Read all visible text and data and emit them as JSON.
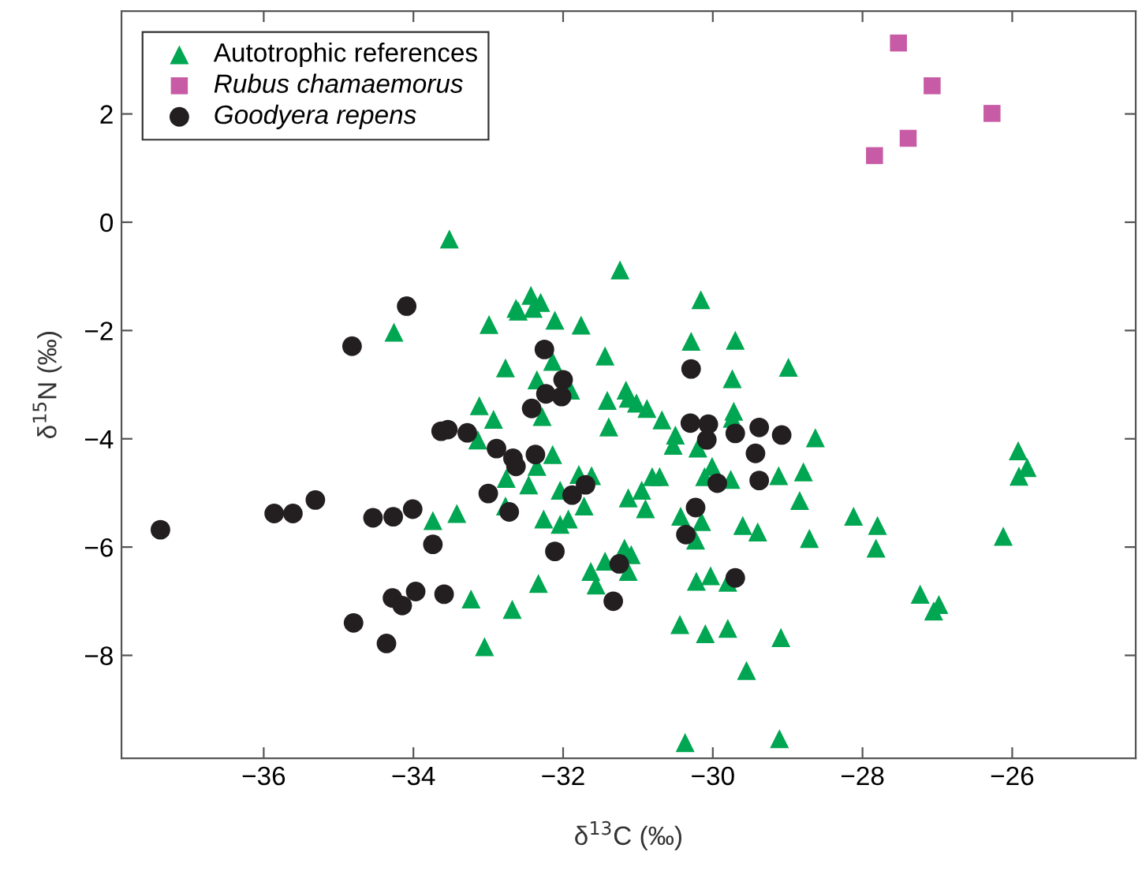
{
  "chart_data": {
    "type": "scatter",
    "xlabel": "δ$^{13}$C (‰)",
    "ylabel": "δ$^{15}$N (‰)",
    "xlim": [
      -37.9,
      -24.35
    ],
    "ylim": [
      -9.9,
      3.9
    ],
    "xticks": [
      {
        "value": -36,
        "label": "−36"
      },
      {
        "value": -34,
        "label": "−34"
      },
      {
        "value": -32,
        "label": "−32"
      },
      {
        "value": -30,
        "label": "−30"
      },
      {
        "value": -28,
        "label": "−28"
      },
      {
        "value": -26,
        "label": "−26"
      }
    ],
    "yticks": [
      {
        "value": -8,
        "label": "−8"
      },
      {
        "value": -6,
        "label": "−6"
      },
      {
        "value": -4,
        "label": "−4"
      },
      {
        "value": -2,
        "label": "−2"
      },
      0,
      2
    ],
    "grid": false,
    "legend": "top left",
    "series": [
      {
        "name": "Autotrophic references",
        "color": "#00a651",
        "marker": "triangle",
        "x": [
          -33.52,
          -34.26,
          -32.99,
          -32.63,
          -32.77,
          -33.12,
          -32.93,
          -33.14,
          -32.76,
          -32.77,
          -33.74,
          -33.42,
          -33.23,
          -32.68,
          -33.05,
          -31.24,
          -32.43,
          -32.3,
          -32.6,
          -32.4,
          -32.11,
          -31.76,
          -32.14,
          -32.35,
          -31.9,
          -31.44,
          -32.28,
          -31.41,
          -31.16,
          -31.13,
          -31.02,
          -30.88,
          -30.68,
          -31.39,
          -32.14,
          -32.35,
          -32.46,
          -32.04,
          -31.79,
          -31.62,
          -31.72,
          -32.26,
          -32.04,
          -31.93,
          -31.13,
          -30.9,
          -30.95,
          -30.81,
          -30.71,
          -32.33,
          -31.63,
          -31.56,
          -31.44,
          -31.18,
          -31.09,
          -31.13,
          -30.5,
          -30.53,
          -30.2,
          -30.16,
          -30.29,
          -29.7,
          -29.74,
          -28.99,
          -29.72,
          -29.74,
          -30.01,
          -30.11,
          -29.76,
          -29.12,
          -28.79,
          -28.63,
          -30.43,
          -30.15,
          -30.23,
          -29.6,
          -29.4,
          -28.84,
          -28.71,
          -30.22,
          -30.03,
          -29.8,
          -30.44,
          -30.1,
          -29.8,
          -29.09,
          -29.55,
          -30.37,
          -29.11,
          -28.12,
          -27.8,
          -27.82,
          -25.92,
          -25.8,
          -25.91,
          -26.12,
          -27.23,
          -26.98,
          -27.05
        ],
        "values": [
          -0.31,
          -2.03,
          -1.89,
          -1.59,
          -2.69,
          -3.39,
          -3.64,
          -4.02,
          -4.73,
          -5.24,
          -5.51,
          -5.38,
          -6.96,
          -7.15,
          -7.84,
          -0.88,
          -1.35,
          -1.48,
          -1.64,
          -1.59,
          -1.81,
          -1.9,
          -2.57,
          -2.91,
          -3.1,
          -2.47,
          -3.59,
          -3.29,
          -3.1,
          -3.25,
          -3.34,
          -3.44,
          -3.65,
          -3.78,
          -4.29,
          -4.51,
          -4.85,
          -4.95,
          -4.66,
          -4.68,
          -5.24,
          -5.48,
          -5.58,
          -5.48,
          -5.09,
          -5.29,
          -4.95,
          -4.7,
          -4.7,
          -6.67,
          -6.45,
          -6.7,
          -6.26,
          -6.02,
          -6.14,
          -6.45,
          -3.93,
          -4.12,
          -4.17,
          -1.43,
          -2.2,
          -2.18,
          -2.89,
          -2.68,
          -3.49,
          -3.62,
          -4.51,
          -4.7,
          -4.75,
          -4.68,
          -4.61,
          -3.98,
          -5.43,
          -5.53,
          -5.87,
          -5.6,
          -5.72,
          -5.14,
          -5.84,
          -6.63,
          -6.53,
          -6.65,
          -7.43,
          -7.6,
          -7.5,
          -7.67,
          -8.28,
          -9.61,
          -9.54,
          -5.43,
          -5.6,
          -6.02,
          -4.22,
          -4.53,
          -4.69,
          -5.8,
          -6.87,
          -7.06,
          -7.18
        ]
      },
      {
        "name": "Rubus chamaemorus",
        "color": "#c75ba5",
        "marker": "square",
        "x": [
          -27.52,
          -27.07,
          -26.27,
          -27.39,
          -27.84
        ],
        "values": [
          3.31,
          2.52,
          2.01,
          1.55,
          1.23
        ]
      },
      {
        "name": "Goodyera repens",
        "color": "#231f20",
        "marker": "circle",
        "x": [
          -37.38,
          -35.86,
          -35.61,
          -35.31,
          -34.54,
          -34.27,
          -34.01,
          -33.74,
          -34.82,
          -34.09,
          -33.63,
          -33.54,
          -33.28,
          -32.89,
          -32.67,
          -32.63,
          -33.0,
          -32.72,
          -34.28,
          -34.15,
          -33.97,
          -33.59,
          -34.8,
          -34.36,
          -32.25,
          -32.0,
          -32.23,
          -32.02,
          -32.42,
          -32.37,
          -32.11,
          -31.7,
          -31.88,
          -31.25,
          -31.33,
          -30.29,
          -30.3,
          -30.06,
          -30.08,
          -29.7,
          -29.38,
          -29.08,
          -29.43,
          -29.38,
          -29.94,
          -30.23,
          -30.36,
          -29.7
        ],
        "values": [
          -5.68,
          -5.38,
          -5.38,
          -5.13,
          -5.46,
          -5.44,
          -5.3,
          -5.95,
          -2.29,
          -1.55,
          -3.86,
          -3.83,
          -3.89,
          -4.18,
          -4.36,
          -4.51,
          -5.01,
          -5.35,
          -6.94,
          -7.08,
          -6.82,
          -6.87,
          -7.4,
          -7.78,
          -2.35,
          -2.91,
          -3.17,
          -3.22,
          -3.44,
          -4.29,
          -6.08,
          -4.85,
          -5.04,
          -6.31,
          -7.0,
          -2.71,
          -3.71,
          -3.73,
          -4.02,
          -3.9,
          -3.79,
          -3.93,
          -4.27,
          -4.77,
          -4.82,
          -5.27,
          -5.77,
          -6.57
        ]
      }
    ]
  }
}
